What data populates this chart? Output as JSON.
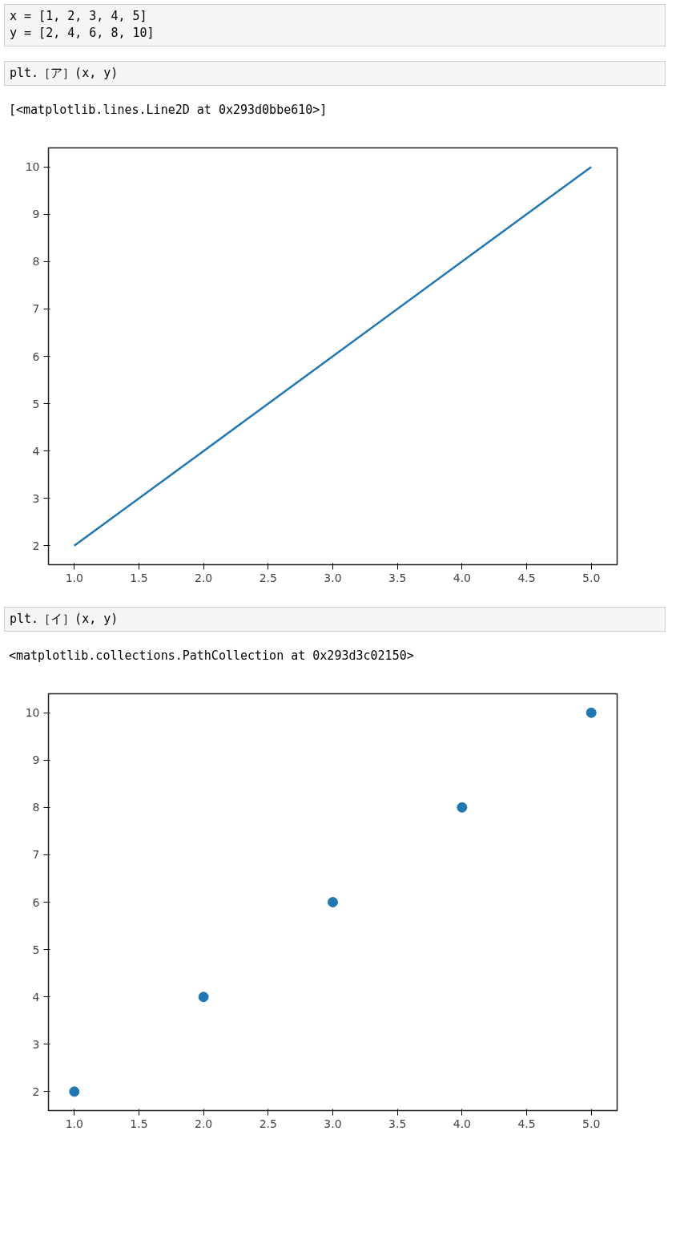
{
  "chart_data": [
    {
      "type": "line",
      "annotations": [
        "x = [1, 2, 3, 4, 5]\ny = [2, 4, 6, 8, 10]",
        "plt.［ア］(x, y)",
        "[<matplotlib.lines.Line2D at 0x293d0bbe610>]"
      ],
      "x": [
        1,
        2,
        3,
        4,
        5
      ],
      "series": [
        {
          "color": "#1f77b4",
          "values": [
            2,
            4,
            6,
            8,
            10
          ]
        }
      ],
      "xlim": [
        0.8,
        5.2
      ],
      "ylim": [
        1.6,
        10.4
      ],
      "xticks": [
        {
          "value": 1,
          "label": "1.0"
        },
        {
          "value": 1.5,
          "label": "1.5"
        },
        {
          "value": 2,
          "label": "2.0"
        },
        {
          "value": 2.5,
          "label": "2.5"
        },
        {
          "value": 3,
          "label": "3.0"
        },
        {
          "value": 3.5,
          "label": "3.5"
        },
        {
          "value": 4,
          "label": "4.0"
        },
        {
          "value": 4.5,
          "label": "4.5"
        },
        {
          "value": 5,
          "label": "5.0"
        }
      ],
      "yticks": [
        2,
        3,
        4,
        5,
        6,
        7,
        8,
        9,
        10
      ],
      "grid": false,
      "marker": "none",
      "line_style": "solid"
    },
    {
      "type": "scatter",
      "annotations": [
        "plt.［イ］(x, y)",
        "<matplotlib.collections.PathCollection at 0x293d3c02150>"
      ],
      "x": [
        1,
        2,
        3,
        4,
        5
      ],
      "series": [
        {
          "color": "#1f77b4",
          "values": [
            2,
            4,
            6,
            8,
            10
          ]
        }
      ],
      "xlim": [
        0.8,
        5.2
      ],
      "ylim": [
        1.6,
        10.4
      ],
      "xticks": [
        {
          "value": 1,
          "label": "1.0"
        },
        {
          "value": 1.5,
          "label": "1.5"
        },
        {
          "value": 2,
          "label": "2.0"
        },
        {
          "value": 2.5,
          "label": "2.5"
        },
        {
          "value": 3,
          "label": "3.0"
        },
        {
          "value": 3.5,
          "label": "3.5"
        },
        {
          "value": 4,
          "label": "4.0"
        },
        {
          "value": 4.5,
          "label": "4.5"
        },
        {
          "value": 5,
          "label": "5.0"
        }
      ],
      "yticks": [
        2,
        3,
        4,
        5,
        6,
        7,
        8,
        9,
        10
      ],
      "grid": false,
      "marker": "circle"
    }
  ]
}
